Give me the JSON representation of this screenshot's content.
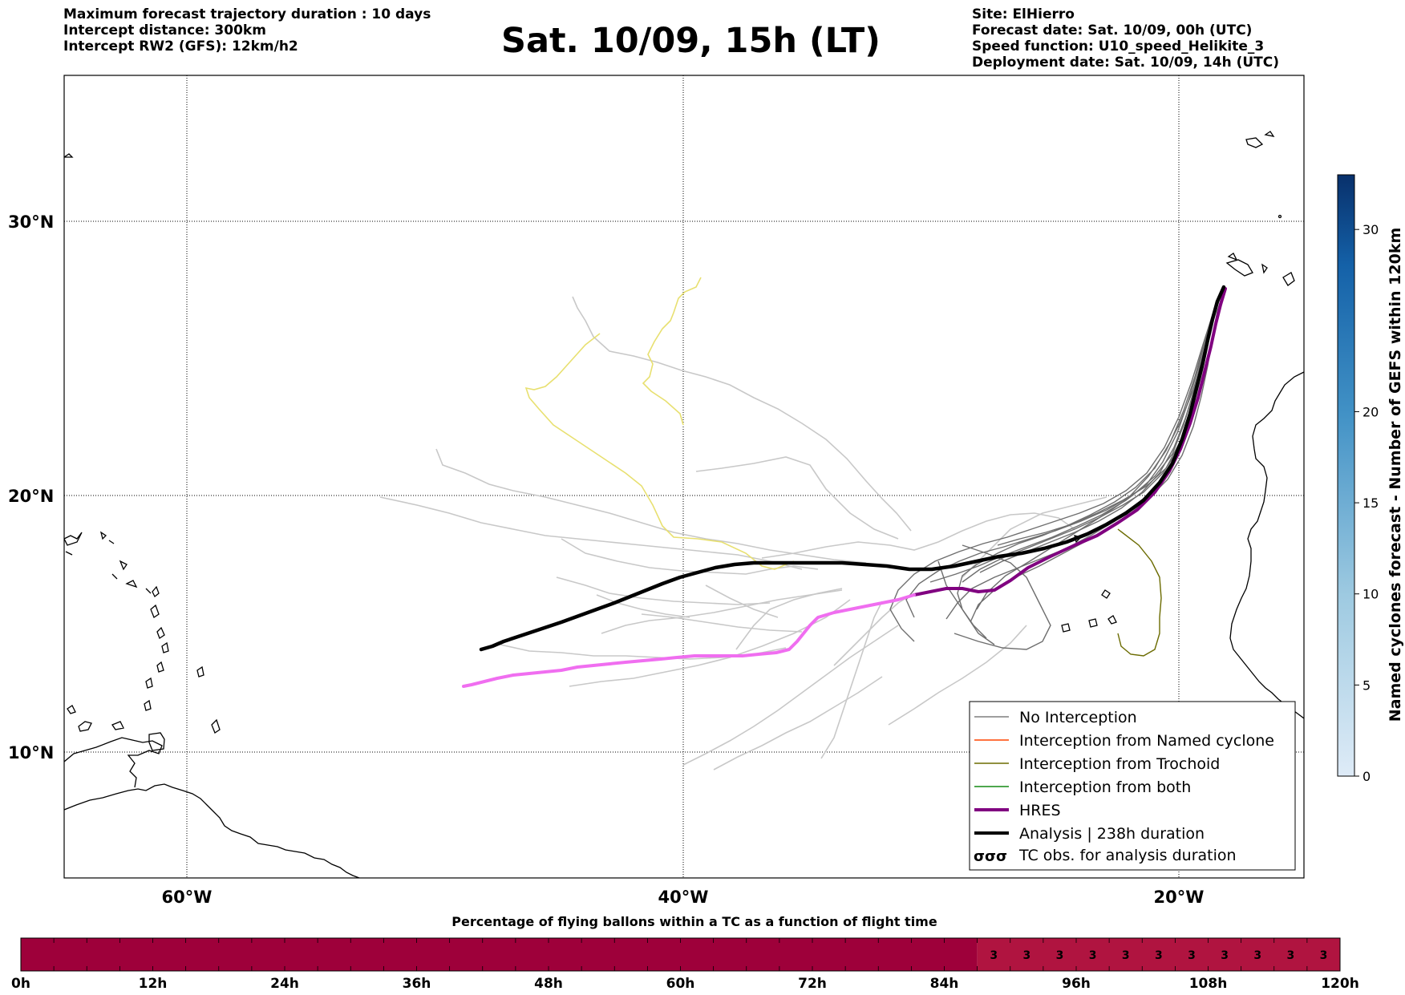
{
  "header": {
    "left": [
      "Maximum forecast trajectory duration : 10 days",
      "Intercept distance: 300km",
      "Intercept RW2 (GFS):  12km/h2"
    ],
    "title": "Sat. 10/09, 15h (LT)",
    "right": [
      "Site: ElHierro",
      "Forecast date: Sat. 10/09, 00h (UTC)",
      "Speed function: U10_speed_Helikite_3",
      "Deployment date: Sat. 10/09, 14h (UTC)"
    ]
  },
  "map": {
    "lon_range": [
      -65,
      15
    ],
    "lat_range": [
      5,
      35
    ],
    "lat_labels": [
      "30°N",
      "20°N",
      "10°N"
    ],
    "lon_labels": [
      "60°W",
      "40°W",
      "20°W"
    ]
  },
  "legend": {
    "items": [
      {
        "label": "No Interception",
        "color": "#7f7f7f",
        "width": 1.5
      },
      {
        "label": "Interception from Named cyclone",
        "color": "#ff4500",
        "width": 1.5
      },
      {
        "label": "Interception from Trochoid",
        "color": "#6b6b00",
        "width": 1.5
      },
      {
        "label": "Interception from both",
        "color": "#138a13",
        "width": 1.5
      },
      {
        "label": "HRES",
        "color": "#800080",
        "width": 4
      },
      {
        "label": "Analysis | 238h duration",
        "color": "#000000",
        "width": 4
      }
    ],
    "tc_symbol": "σσσ",
    "tc_label": "TC obs. for analysis duration"
  },
  "colorbar": {
    "label": "Named cyclones forecast - Number of GEFS within 120km",
    "ticks": [
      "0",
      "5",
      "10",
      "15",
      "20",
      "30"
    ]
  },
  "bottom_bar": {
    "title": "Percentage of flying ballons within a TC as a function of flight time",
    "ticks": [
      "0h",
      "12h",
      "24h",
      "36h",
      "48h",
      "60h",
      "72h",
      "84h",
      "96h",
      "108h",
      "120h"
    ],
    "cell_value": "3",
    "start_hour": 87,
    "end_hour": 120,
    "base_color": "#9e003a",
    "highlight_color": "#b01440"
  }
}
